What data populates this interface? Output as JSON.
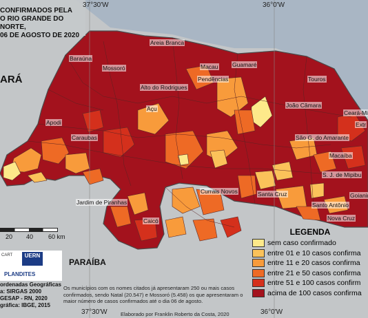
{
  "title_lines": [
    "CONFIRMADOS PELA",
    "O RIO GRANDE DO NORTE,",
    "06 DE AGOSTO DE 2020"
  ],
  "grid": {
    "top_left": "37°30'W",
    "top_right": "36°0'W",
    "bottom_left": "37°30'W",
    "bottom_right": "36°0'W"
  },
  "neighbors": {
    "west": "ARÁ",
    "south": "PARAÍBA"
  },
  "cities": [
    {
      "name": "Areia Branca"
    },
    {
      "name": "Baraúna"
    },
    {
      "name": "Mossoró"
    },
    {
      "name": "Macau"
    },
    {
      "name": "Guamaré"
    },
    {
      "name": "Pendências"
    },
    {
      "name": "Alto do Rodrigues"
    },
    {
      "name": "Touros"
    },
    {
      "name": "Açu"
    },
    {
      "name": "João Câmara"
    },
    {
      "name": "Ceará-Mir"
    },
    {
      "name": "Extr"
    },
    {
      "name": "Apodi"
    },
    {
      "name": "Caraubas"
    },
    {
      "name": "São G. do Amarante"
    },
    {
      "name": "Macaíba"
    },
    {
      "name": "S. J. de Mipibu"
    },
    {
      "name": "Currais Novos"
    },
    {
      "name": "Santa Cruz"
    },
    {
      "name": "Goianinh"
    },
    {
      "name": "Jardim de Piranhas"
    },
    {
      "name": "Santo Antônio"
    },
    {
      "name": "Caicó"
    },
    {
      "name": "Nova Cruz"
    }
  ],
  "legend": {
    "title": "LEGENDA",
    "items": [
      {
        "label": "sem caso confirmado",
        "color": "#fde98a"
      },
      {
        "label": "entre 01 e 10 casos confirma",
        "color": "#fbc25a"
      },
      {
        "label": "entre 11 e 20 casos confirma",
        "color": "#f89b3b"
      },
      {
        "label": "entre 21 e 50 casos confirma",
        "color": "#ee6a25"
      },
      {
        "label": "entre 51 e 100 casos confirm",
        "color": "#d4301c"
      },
      {
        "label": "acima de 100 casos confirma",
        "color": "#a3121d"
      }
    ]
  },
  "scale": {
    "labels": [
      "20",
      "40",
      "60 km"
    ]
  },
  "logos": {
    "uern": "UERN",
    "plan": "PLANDITES",
    "small": "CART"
  },
  "info_lines": [
    "ordenadas Geográficas",
    "a: SIRGAS 2000",
    "GESAP - RN, 2020",
    "gráfica: IBGE, 2015"
  ],
  "note": "Os municípios com os nomes citados já apresentaram 250 ou mais casos confirmados, sendo Natal (20.547) e Mossoró (5.458) os que apresentaram o maior número de casos confirmados até o dia 06 de agosto.",
  "credit": "Elaborado por Franklin Roberto da Costa, 2020",
  "colors": {
    "sea": "#a8b7c6",
    "land_out": "#c9ccce",
    "border": "#555555"
  }
}
